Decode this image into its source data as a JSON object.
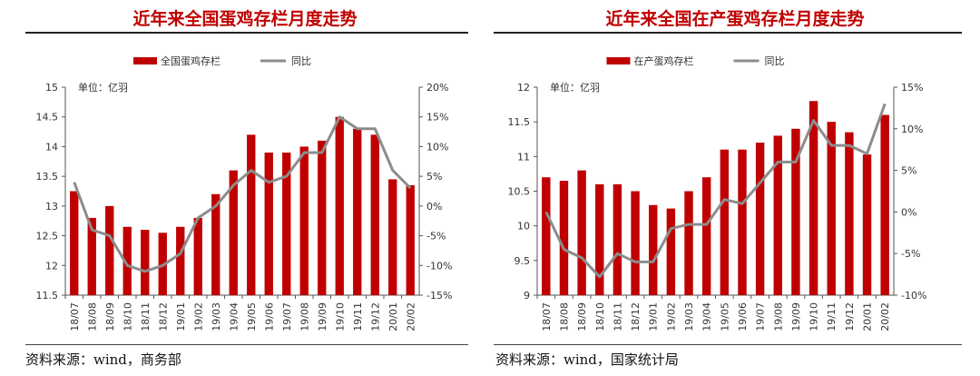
{
  "chart_data": [
    {
      "type": "bar+line",
      "title": "近年来全国蛋鸡存栏月度走势",
      "unit_label": "单位：亿羽",
      "legend": [
        "全国蛋鸡存栏",
        "同比"
      ],
      "categories": [
        "18/07",
        "18/08",
        "18/09",
        "18/10",
        "18/11",
        "18/12",
        "19/01",
        "19/02",
        "19/03",
        "19/04",
        "19/05",
        "19/06",
        "19/07",
        "19/08",
        "19/09",
        "19/10",
        "19/11",
        "19/12",
        "20/01",
        "20/02"
      ],
      "series": [
        {
          "name": "全国蛋鸡存栏",
          "axis": "left",
          "type": "bar",
          "values": [
            13.25,
            12.8,
            13.0,
            12.65,
            12.6,
            12.55,
            12.65,
            12.8,
            13.2,
            13.6,
            14.2,
            13.9,
            13.9,
            14.0,
            14.1,
            14.5,
            14.3,
            14.2,
            13.45,
            13.35
          ]
        },
        {
          "name": "同比",
          "axis": "right",
          "type": "line",
          "values": [
            4.0,
            -4.0,
            -5.0,
            -10.0,
            -11.0,
            -10.0,
            -8.0,
            -2.0,
            0.0,
            3.5,
            6.0,
            4.0,
            5.0,
            9.0,
            9.0,
            15.0,
            13.0,
            13.0,
            6.0,
            3.0
          ]
        }
      ],
      "ylim_left": [
        11.5,
        15
      ],
      "yticks_left": [
        "11.5",
        "12",
        "12.5",
        "13",
        "13.5",
        "14",
        "14.5",
        "15"
      ],
      "ylim_right": [
        -15,
        20
      ],
      "yticks_right": [
        "-15%",
        "-10%",
        "-5%",
        "0%",
        "5%",
        "10%",
        "15%",
        "20%"
      ],
      "source": "资料来源：wind，商务部"
    },
    {
      "type": "bar+line",
      "title": "近年来全国在产蛋鸡存栏月度走势",
      "unit_label": "单位：亿羽",
      "legend": [
        "在产蛋鸡存栏",
        "同比"
      ],
      "categories": [
        "18/07",
        "18/08",
        "18/09",
        "18/10",
        "18/11",
        "18/12",
        "19/01",
        "19/02",
        "19/03",
        "19/04",
        "19/05",
        "19/06",
        "19/07",
        "19/08",
        "19/09",
        "19/10",
        "19/11",
        "19/12",
        "20/01",
        "20/02"
      ],
      "series": [
        {
          "name": "在产蛋鸡存栏",
          "axis": "left",
          "type": "bar",
          "values": [
            10.7,
            10.65,
            10.8,
            10.6,
            10.6,
            10.5,
            10.3,
            10.25,
            10.5,
            10.7,
            11.1,
            11.1,
            11.2,
            11.3,
            11.4,
            11.8,
            11.5,
            11.35,
            11.03,
            11.6
          ]
        },
        {
          "name": "同比",
          "axis": "right",
          "type": "line",
          "values": [
            0.0,
            -4.5,
            -5.5,
            -7.8,
            -5.0,
            -6.0,
            -6.0,
            -2.0,
            -1.5,
            -1.5,
            1.5,
            1.0,
            3.5,
            6.0,
            6.0,
            11.0,
            8.0,
            8.0,
            7.0,
            13.0
          ]
        }
      ],
      "ylim_left": [
        9,
        12
      ],
      "yticks_left": [
        "9",
        "9.5",
        "10",
        "10.5",
        "11",
        "11.5",
        "12"
      ],
      "ylim_right": [
        -10,
        15
      ],
      "yticks_right": [
        "-10%",
        "-5%",
        "0%",
        "5%",
        "10%",
        "15%"
      ],
      "source": "资料来源：wind，国家统计局"
    }
  ],
  "colors": {
    "bar": "#c00000",
    "line": "#8c8c8c",
    "title": "#c00000",
    "axis": "#555555"
  }
}
